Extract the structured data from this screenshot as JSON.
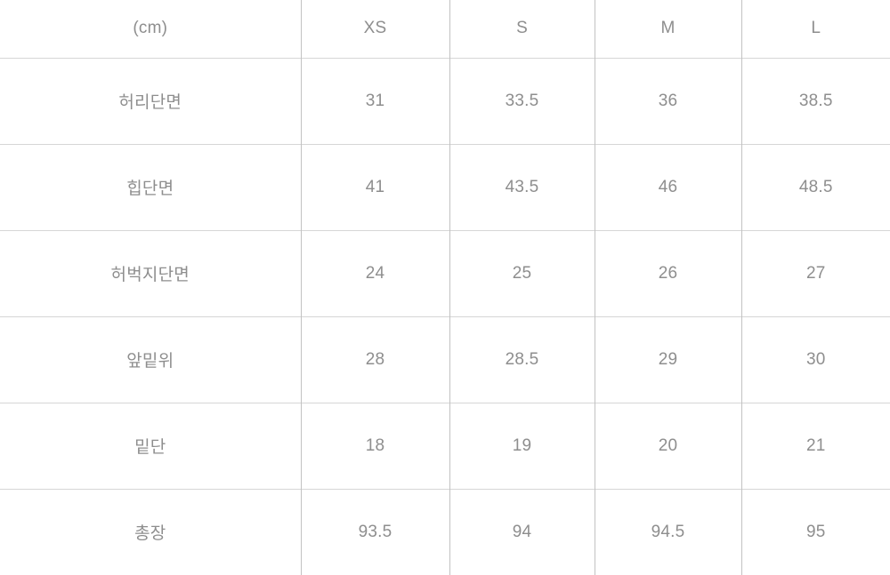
{
  "table": {
    "unit_header": "(cm)",
    "size_headers": [
      "XS",
      "S",
      "M",
      "L"
    ],
    "rows": [
      {
        "label": "허리단면",
        "values": [
          "31",
          "33.5",
          "36",
          "38.5"
        ]
      },
      {
        "label": "힙단면",
        "values": [
          "41",
          "43.5",
          "46",
          "48.5"
        ]
      },
      {
        "label": "허벅지단면",
        "values": [
          "24",
          "25",
          "26",
          "27"
        ]
      },
      {
        "label": "앞밑위",
        "values": [
          "28",
          "28.5",
          "29",
          "30"
        ]
      },
      {
        "label": "밑단",
        "values": [
          "18",
          "19",
          "20",
          "21"
        ]
      },
      {
        "label": "총장",
        "values": [
          "93.5",
          "94",
          "94.5",
          "95"
        ]
      }
    ]
  },
  "chart_data": {
    "type": "table",
    "title": "",
    "columns": [
      "(cm)",
      "XS",
      "S",
      "M",
      "L"
    ],
    "rows": [
      [
        "허리단면",
        31,
        33.5,
        36,
        38.5
      ],
      [
        "힙단면",
        41,
        43.5,
        46,
        48.5
      ],
      [
        "허벅지단면",
        24,
        25,
        26,
        27
      ],
      [
        "앞밑위",
        28,
        28.5,
        29,
        30
      ],
      [
        "밑단",
        18,
        19,
        20,
        21
      ],
      [
        "총장",
        93.5,
        94,
        94.5,
        95
      ]
    ]
  },
  "colors": {
    "background": "#ffffff",
    "text": "#8e8e8e",
    "horizontal_border": "#d6d6d6",
    "vertical_border": "#c2c2c2"
  }
}
